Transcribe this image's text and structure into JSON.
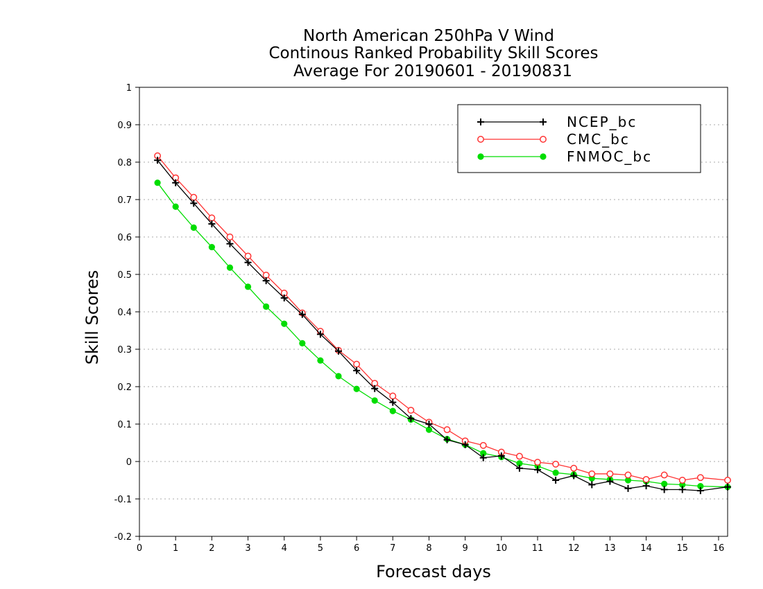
{
  "chart_data": {
    "type": "line",
    "title_lines": [
      "North American 250hPa V Wind",
      "Continous Ranked Probability Skill Scores",
      "Average For 20190601 - 20190831"
    ],
    "xlabel": "Forecast days",
    "ylabel": "Skill Scores",
    "xlim": [
      0,
      16.25
    ],
    "ylim": [
      -0.2,
      1
    ],
    "x_ticks": [
      0,
      1,
      2,
      3,
      4,
      5,
      6,
      7,
      8,
      9,
      10,
      11,
      12,
      13,
      14,
      15,
      16
    ],
    "y_ticks": [
      -0.2,
      -0.1,
      0,
      0.1,
      0.2,
      0.3,
      0.4,
      0.5,
      0.6,
      0.7,
      0.8,
      0.9,
      1
    ],
    "y_tick_labels": [
      "-0.2",
      "-0.1",
      "0",
      "0.1",
      "0.2",
      "0.3",
      "0.4",
      "0.5",
      "0.6",
      "0.7",
      "0.8",
      "0.9",
      "1"
    ],
    "grid": "horizontal dotted",
    "legend_position": "top-right",
    "x": [
      0.5,
      1,
      1.5,
      2,
      2.5,
      3,
      3.5,
      4,
      4.5,
      5,
      5.5,
      6,
      6.5,
      7,
      7.5,
      8,
      8.5,
      9,
      9.5,
      10,
      10.5,
      11,
      11.5,
      12,
      12.5,
      13,
      13.5,
      14,
      14.5,
      15,
      15.5,
      16.25
    ],
    "series": [
      {
        "name": "NCEP_bc",
        "color": "#000000",
        "marker": "plus",
        "values": [
          0.805,
          0.745,
          0.69,
          0.635,
          0.582,
          0.532,
          0.483,
          0.437,
          0.393,
          0.34,
          0.295,
          0.243,
          0.195,
          0.158,
          0.115,
          0.1,
          0.058,
          0.045,
          0.01,
          0.015,
          -0.018,
          -0.022,
          -0.05,
          -0.038,
          -0.062,
          -0.053,
          -0.072,
          -0.065,
          -0.075,
          -0.075,
          -0.078,
          -0.068
        ]
      },
      {
        "name": "CMC_bc",
        "color": "#ff3333",
        "marker": "open-circle",
        "values": [
          0.817,
          0.758,
          0.706,
          0.651,
          0.6,
          0.549,
          0.498,
          0.45,
          0.397,
          0.348,
          0.297,
          0.26,
          0.209,
          0.175,
          0.137,
          0.105,
          0.085,
          0.055,
          0.043,
          0.025,
          0.014,
          -0.002,
          -0.007,
          -0.018,
          -0.033,
          -0.033,
          -0.036,
          -0.048,
          -0.036,
          -0.05,
          -0.043,
          -0.05
        ]
      },
      {
        "name": "FNMOC_bc",
        "color": "#00dd00",
        "marker": "filled-circle",
        "values": [
          0.745,
          0.681,
          0.625,
          0.573,
          0.518,
          0.467,
          0.414,
          0.368,
          0.316,
          0.27,
          0.228,
          0.194,
          0.163,
          0.135,
          0.112,
          0.085,
          0.06,
          0.045,
          0.022,
          0.012,
          -0.005,
          -0.012,
          -0.03,
          -0.035,
          -0.045,
          -0.048,
          -0.05,
          -0.053,
          -0.06,
          -0.062,
          -0.066,
          -0.068
        ]
      }
    ]
  }
}
